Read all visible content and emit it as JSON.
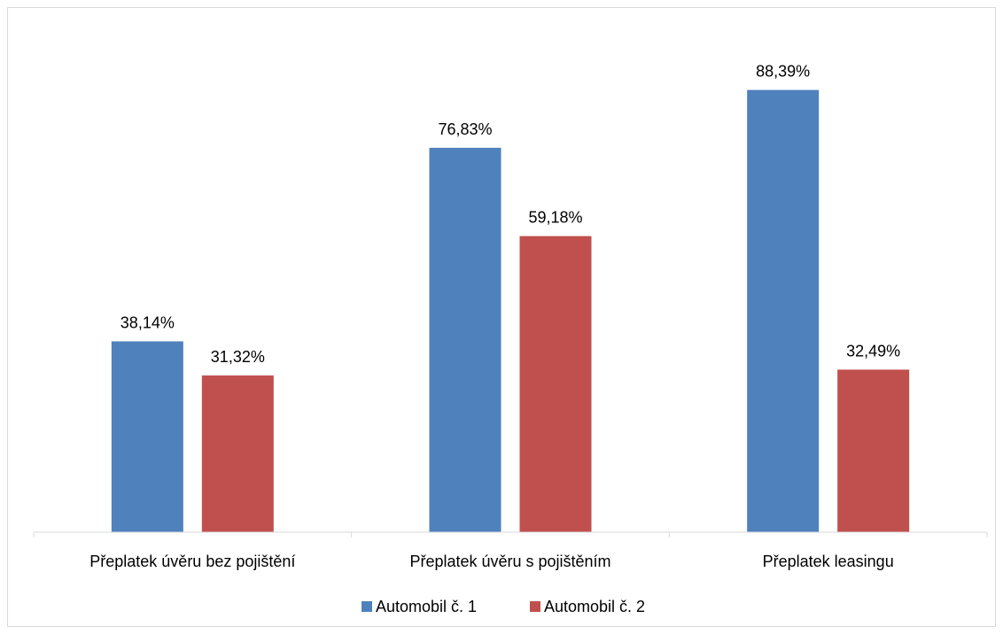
{
  "chart_data": {
    "type": "bar",
    "categories": [
      "Přeplatek úvěru bez pojištění",
      "Přeplatek úvěru s pojištěním",
      "Přeplatek leasingu"
    ],
    "series": [
      {
        "name": "Automobil č. 1",
        "values": [
          38.14,
          76.83,
          88.39
        ],
        "labels": [
          "38,14%",
          "76,83%",
          "88,39%"
        ],
        "color": "#4f81bd"
      },
      {
        "name": "Automobil č. 2",
        "values": [
          31.32,
          59.18,
          32.49
        ],
        "labels": [
          "31,32%",
          "59,18%",
          "32,49%"
        ],
        "color": "#c0504d"
      }
    ],
    "ylim": [
      0,
      100
    ],
    "grid": false,
    "legend": "bottom",
    "axis_color": "#d9d9d9"
  }
}
